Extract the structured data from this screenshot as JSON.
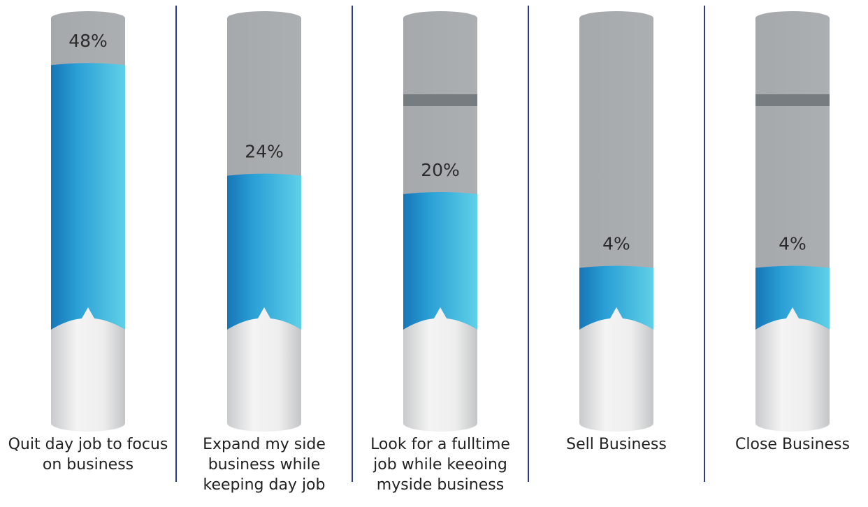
{
  "chart_data": {
    "type": "cylinder",
    "categories": [
      "Quit day job to focus on business",
      "Expand my side business while keeping day job",
      "Look for a fulltime job while keeoing myside business",
      "Sell Business",
      "Close Business"
    ],
    "values": [
      48,
      24,
      20,
      4,
      4
    ],
    "value_labels": [
      "48%",
      "24%",
      "20%",
      "4%",
      "4%"
    ]
  }
}
